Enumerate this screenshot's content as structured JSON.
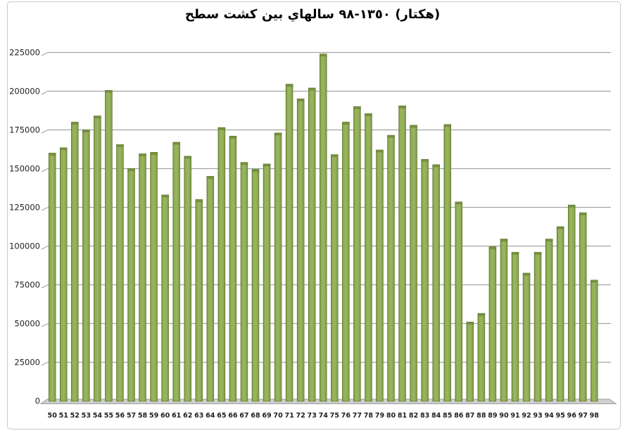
{
  "chart": {
    "title_full": "سطح كشت بين سالهاي ١٣٥٠-٩٨ (هكتار)"
  },
  "chart_data": {
    "type": "bar",
    "title": "سطح كشت بين سالهاي ١٣٥٠-٩٨ (هكتار)",
    "title_tokens_visual_left_to_right": [
      "سطح",
      "كشت",
      "بين",
      "سالهاي",
      "١٣٥٠-٩٨",
      "(هكتار)"
    ],
    "xlabel": "",
    "ylabel": "",
    "ylim": [
      0,
      225000
    ],
    "ytick_step": 25000,
    "ytick_labels": [
      "0",
      "25000",
      "50000",
      "75000",
      "100000",
      "125000",
      "150000",
      "175000",
      "200000",
      "225000"
    ],
    "grid": true,
    "legend": "none",
    "style": "3d-column",
    "bar_fill_color": "#94b258",
    "bar_edge_color": "#5e7532",
    "bar_cap_color": "#7b953e",
    "gridline_color": "#a4a4a4",
    "floor_color": "#d0d0d0",
    "axis_label_color": "#1f1f1f",
    "categories": [
      "50",
      "51",
      "52",
      "53",
      "54",
      "55",
      "56",
      "57",
      "58",
      "59",
      "60",
      "61",
      "62",
      "63",
      "64",
      "65",
      "66",
      "67",
      "68",
      "69",
      "70",
      "71",
      "72",
      "73",
      "74",
      "75",
      "76",
      "77",
      "78",
      "79",
      "80",
      "81",
      "82",
      "83",
      "84",
      "85",
      "86",
      "87",
      "88",
      "89",
      "90",
      "91",
      "92",
      "93",
      "94",
      "95",
      "96",
      "97",
      "98"
    ],
    "values": [
      160000,
      163500,
      180000,
      175000,
      184000,
      200500,
      165500,
      150000,
      159500,
      160500,
      133000,
      167000,
      158000,
      130000,
      145000,
      176500,
      171000,
      154000,
      149500,
      153000,
      173000,
      204500,
      195000,
      202000,
      224000,
      159000,
      180000,
      190000,
      185500,
      162000,
      171500,
      190500,
      178000,
      156000,
      152500,
      178500,
      128500,
      51000,
      56500,
      99500,
      104500,
      96000,
      82500,
      96000,
      104500,
      112500,
      126500,
      121500,
      78000
    ]
  }
}
